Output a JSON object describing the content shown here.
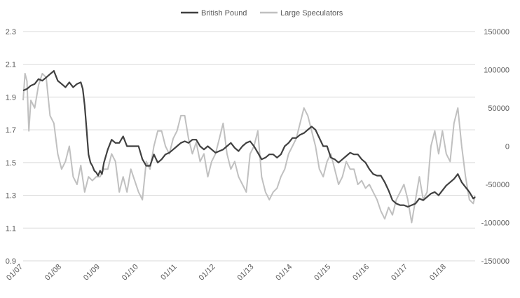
{
  "chart_data": {
    "type": "line",
    "legend": {
      "position": "top",
      "items": [
        "British Pound",
        "Large Speculators"
      ]
    },
    "x_tick_labels": [
      "01/07",
      "01/08",
      "01/09",
      "01/10",
      "01/11",
      "01/12",
      "01/13",
      "01/14",
      "01/15",
      "01/16",
      "01/17",
      "01/18"
    ],
    "x_range": [
      2007.0,
      2018.75
    ],
    "y_left": {
      "range": [
        0.9,
        2.3
      ],
      "ticks": [
        "0.9",
        "1.1",
        "1.3",
        "1.5",
        "1.7",
        "1.9",
        "2.1",
        "2.3"
      ]
    },
    "y_right": {
      "range": [
        -150000,
        150000
      ],
      "ticks": [
        "-150000",
        "-100000",
        "-50000",
        "0",
        "50000",
        "100000",
        "150000"
      ]
    },
    "grid": "horizontal",
    "series": [
      {
        "name": "British Pound",
        "axis": "left",
        "color": "#404040",
        "x": [
          2007.0,
          2007.1,
          2007.2,
          2007.3,
          2007.4,
          2007.5,
          2007.6,
          2007.7,
          2007.8,
          2007.9,
          2008.0,
          2008.1,
          2008.2,
          2008.3,
          2008.4,
          2008.5,
          2008.55,
          2008.6,
          2008.65,
          2008.7,
          2008.75,
          2008.8,
          2008.85,
          2008.9,
          2008.95,
          2009.0,
          2009.05,
          2009.1,
          2009.2,
          2009.3,
          2009.4,
          2009.5,
          2009.6,
          2009.7,
          2009.8,
          2009.9,
          2010.0,
          2010.1,
          2010.2,
          2010.3,
          2010.4,
          2010.5,
          2010.6,
          2010.7,
          2010.8,
          2010.9,
          2011.0,
          2011.1,
          2011.2,
          2011.3,
          2011.4,
          2011.5,
          2011.6,
          2011.7,
          2011.8,
          2011.9,
          2012.0,
          2012.1,
          2012.2,
          2012.3,
          2012.4,
          2012.5,
          2012.6,
          2012.7,
          2012.8,
          2012.9,
          2013.0,
          2013.1,
          2013.2,
          2013.3,
          2013.4,
          2013.5,
          2013.6,
          2013.7,
          2013.8,
          2013.9,
          2014.0,
          2014.1,
          2014.2,
          2014.3,
          2014.4,
          2014.5,
          2014.6,
          2014.7,
          2014.8,
          2014.9,
          2015.0,
          2015.1,
          2015.2,
          2015.3,
          2015.4,
          2015.5,
          2015.6,
          2015.7,
          2015.8,
          2015.9,
          2016.0,
          2016.1,
          2016.2,
          2016.3,
          2016.4,
          2016.5,
          2016.6,
          2016.7,
          2016.8,
          2016.9,
          2017.0,
          2017.1,
          2017.2,
          2017.3,
          2017.4,
          2017.5,
          2017.6,
          2017.7,
          2017.8,
          2017.9,
          2018.0,
          2018.1,
          2018.2,
          2018.3,
          2018.4,
          2018.5,
          2018.6,
          2018.7,
          2018.75
        ],
        "values": [
          1.94,
          1.95,
          1.97,
          1.98,
          2.01,
          2.0,
          2.02,
          2.04,
          2.06,
          2.0,
          1.98,
          1.96,
          1.99,
          1.96,
          1.98,
          1.99,
          1.95,
          1.85,
          1.7,
          1.55,
          1.5,
          1.48,
          1.45,
          1.44,
          1.42,
          1.45,
          1.43,
          1.5,
          1.58,
          1.64,
          1.62,
          1.62,
          1.66,
          1.6,
          1.6,
          1.6,
          1.6,
          1.52,
          1.48,
          1.48,
          1.55,
          1.5,
          1.52,
          1.55,
          1.56,
          1.58,
          1.6,
          1.62,
          1.63,
          1.62,
          1.64,
          1.64,
          1.6,
          1.58,
          1.6,
          1.58,
          1.56,
          1.57,
          1.58,
          1.6,
          1.62,
          1.59,
          1.57,
          1.6,
          1.62,
          1.63,
          1.6,
          1.56,
          1.52,
          1.53,
          1.55,
          1.55,
          1.53,
          1.55,
          1.6,
          1.62,
          1.65,
          1.65,
          1.67,
          1.68,
          1.7,
          1.72,
          1.7,
          1.65,
          1.6,
          1.6,
          1.53,
          1.52,
          1.5,
          1.52,
          1.54,
          1.56,
          1.55,
          1.55,
          1.52,
          1.5,
          1.46,
          1.43,
          1.42,
          1.42,
          1.38,
          1.33,
          1.27,
          1.25,
          1.24,
          1.24,
          1.23,
          1.24,
          1.25,
          1.28,
          1.27,
          1.29,
          1.31,
          1.32,
          1.3,
          1.33,
          1.36,
          1.38,
          1.4,
          1.43,
          1.38,
          1.35,
          1.32,
          1.28,
          1.29
        ]
      },
      {
        "name": "Large Speculators",
        "axis": "right",
        "color": "#c0c0c0",
        "x": [
          2007.0,
          2007.05,
          2007.1,
          2007.15,
          2007.2,
          2007.3,
          2007.4,
          2007.5,
          2007.6,
          2007.7,
          2007.8,
          2007.9,
          2008.0,
          2008.1,
          2008.2,
          2008.3,
          2008.4,
          2008.5,
          2008.6,
          2008.7,
          2008.8,
          2008.9,
          2009.0,
          2009.1,
          2009.2,
          2009.3,
          2009.4,
          2009.5,
          2009.6,
          2009.7,
          2009.8,
          2009.9,
          2010.0,
          2010.1,
          2010.2,
          2010.3,
          2010.4,
          2010.5,
          2010.6,
          2010.7,
          2010.8,
          2010.9,
          2011.0,
          2011.1,
          2011.2,
          2011.3,
          2011.4,
          2011.5,
          2011.6,
          2011.7,
          2011.8,
          2011.9,
          2012.0,
          2012.1,
          2012.2,
          2012.3,
          2012.4,
          2012.5,
          2012.6,
          2012.7,
          2012.8,
          2012.9,
          2013.0,
          2013.1,
          2013.2,
          2013.3,
          2013.4,
          2013.5,
          2013.6,
          2013.7,
          2013.8,
          2013.9,
          2014.0,
          2014.1,
          2014.2,
          2014.3,
          2014.4,
          2014.5,
          2014.6,
          2014.7,
          2014.8,
          2014.9,
          2015.0,
          2015.1,
          2015.2,
          2015.3,
          2015.4,
          2015.5,
          2015.6,
          2015.7,
          2015.8,
          2015.9,
          2016.0,
          2016.1,
          2016.2,
          2016.3,
          2016.4,
          2016.5,
          2016.6,
          2016.7,
          2016.8,
          2016.9,
          2017.0,
          2017.1,
          2017.2,
          2017.3,
          2017.4,
          2017.5,
          2017.6,
          2017.7,
          2017.8,
          2017.9,
          2018.0,
          2018.1,
          2018.2,
          2018.3,
          2018.4,
          2018.5,
          2018.6,
          2018.7,
          2018.75
        ],
        "values": [
          60000,
          95000,
          85000,
          20000,
          60000,
          50000,
          80000,
          95000,
          90000,
          40000,
          30000,
          -10000,
          -30000,
          -20000,
          0,
          -40000,
          -50000,
          -25000,
          -60000,
          -40000,
          -45000,
          -40000,
          -40000,
          -30000,
          -30000,
          -10000,
          -20000,
          -60000,
          -40000,
          -60000,
          -30000,
          -45000,
          -60000,
          -70000,
          -20000,
          -30000,
          0,
          20000,
          20000,
          0,
          -10000,
          10000,
          20000,
          40000,
          40000,
          10000,
          -10000,
          5000,
          -20000,
          -10000,
          -40000,
          -20000,
          -10000,
          10000,
          30000,
          -10000,
          -30000,
          -20000,
          -40000,
          -50000,
          -60000,
          -10000,
          0,
          20000,
          -40000,
          -60000,
          -70000,
          -60000,
          -55000,
          -40000,
          -30000,
          -10000,
          0,
          10000,
          30000,
          50000,
          40000,
          20000,
          0,
          -30000,
          -40000,
          -20000,
          -10000,
          -30000,
          -50000,
          -40000,
          -20000,
          -30000,
          -30000,
          -50000,
          -45000,
          -55000,
          -50000,
          -60000,
          -70000,
          -85000,
          -95000,
          -80000,
          -90000,
          -70000,
          -60000,
          -50000,
          -70000,
          -100000,
          -70000,
          -40000,
          -70000,
          -60000,
          0,
          20000,
          -10000,
          20000,
          -10000,
          -20000,
          30000,
          50000,
          0,
          -40000,
          -70000,
          -75000,
          -65000
        ]
      }
    ]
  }
}
